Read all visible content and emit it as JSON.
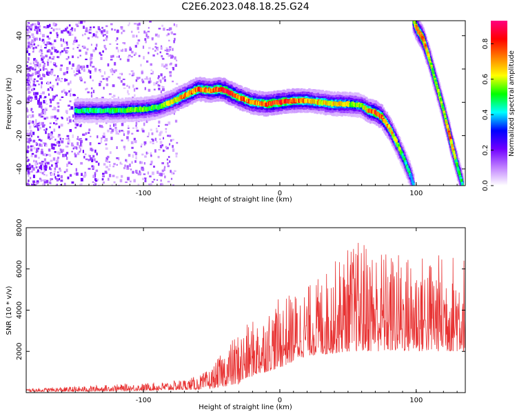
{
  "title": "C2E6.2023.048.18.25.G24",
  "chart_data": [
    {
      "type": "heatmap",
      "xlabel": "Height of straight line (km)",
      "ylabel": "Frequency (Hz)",
      "xlim": [
        -186,
        136
      ],
      "ylim": [
        -50,
        49
      ],
      "xticks": [
        -100,
        0,
        100
      ],
      "yticks": [
        -40,
        -20,
        0,
        20,
        40
      ],
      "colorbar": {
        "label": "Normalized spectral amplitude",
        "range": [
          0,
          0.93
        ],
        "ticks": [
          "0.0",
          "0.2",
          "0.4",
          "0.6",
          "0.8"
        ],
        "colors": [
          "#ffffff",
          "#c080ff",
          "#7000ff",
          "#0000ff",
          "#00ffff",
          "#00ff00",
          "#ffff00",
          "#ff8000",
          "#ff0000",
          "#ff0080"
        ]
      },
      "ridge_1": {
        "x": [
          -150,
          -120,
          -100,
          -90,
          -80,
          -70,
          -60,
          -50,
          -45,
          -40,
          -30,
          -20,
          -10,
          0,
          10,
          20,
          30,
          40,
          50,
          60,
          65,
          70,
          75,
          80,
          85,
          90,
          95,
          98
        ],
        "y": [
          -5,
          -5,
          -4,
          -3,
          0,
          4,
          8,
          7,
          8,
          7,
          3,
          0,
          -1,
          0,
          1,
          1,
          0,
          -1,
          -1,
          -2,
          -5,
          -6,
          -9,
          -15,
          -23,
          -32,
          -42,
          -50
        ],
        "amp": [
          0.45,
          0.5,
          0.55,
          0.5,
          0.6,
          0.7,
          0.75,
          0.7,
          0.8,
          0.85,
          0.75,
          0.7,
          0.75,
          0.8,
          0.75,
          0.7,
          0.65,
          0.65,
          0.6,
          0.55,
          0.7,
          0.8,
          0.75,
          0.7,
          0.6,
          0.5,
          0.45,
          0.4
        ]
      },
      "ridge_2": {
        "x": [
          98,
          100,
          105,
          110,
          115,
          120,
          125,
          130,
          134
        ],
        "y": [
          49,
          45,
          38,
          25,
          10,
          -5,
          -22,
          -38,
          -50
        ],
        "amp": [
          0.5,
          0.7,
          0.8,
          0.6,
          0.55,
          0.55,
          0.75,
          0.5,
          0.45
        ]
      }
    },
    {
      "type": "line",
      "xlabel": "Height of straight line (km)",
      "ylabel": "SNR (10 * v/v)",
      "xlim": [
        -186,
        136
      ],
      "ylim": [
        0,
        8000
      ],
      "xticks": [
        -100,
        0,
        100
      ],
      "yticks": [
        2000,
        4000,
        6000,
        8000
      ],
      "color": "#e83232",
      "envelope": {
        "x": [
          -186,
          -150,
          -120,
          -100,
          -80,
          -60,
          -50,
          -40,
          -30,
          -20,
          -10,
          0,
          10,
          20,
          30,
          40,
          50,
          60,
          70,
          80,
          90,
          100,
          110,
          120,
          136
        ],
        "low": [
          50,
          50,
          80,
          100,
          120,
          150,
          200,
          300,
          400,
          800,
          1000,
          1200,
          1500,
          1800,
          1800,
          1900,
          2000,
          2000,
          2000,
          2000,
          2000,
          2000,
          2000,
          2000,
          2000
        ],
        "high": [
          200,
          300,
          400,
          450,
          550,
          800,
          1200,
          2200,
          3000,
          3500,
          4000,
          4600,
          4900,
          5200,
          5700,
          6400,
          7100,
          7500,
          7200,
          6900,
          6800,
          6800,
          6700,
          6800,
          6900
        ]
      }
    }
  ]
}
